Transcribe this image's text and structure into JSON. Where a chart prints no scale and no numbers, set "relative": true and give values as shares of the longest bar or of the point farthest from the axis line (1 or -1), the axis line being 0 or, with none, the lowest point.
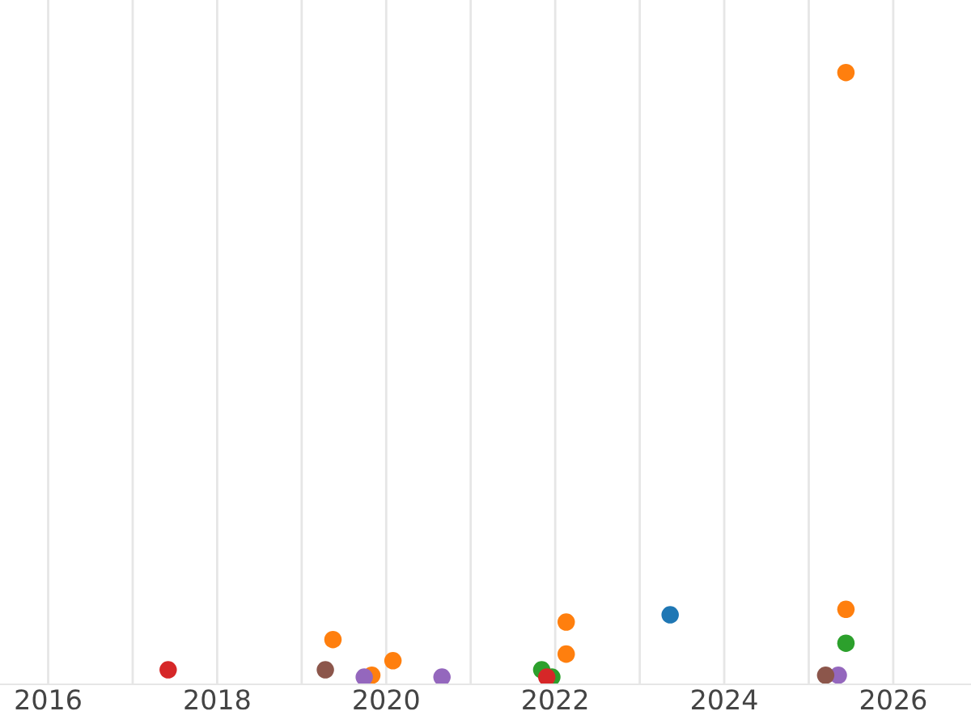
{
  "chart_data": {
    "type": "scatter",
    "relative": true,
    "grid": "x",
    "marker": "circle",
    "legend": false,
    "xlim": [
      2015.43,
      2026.92
    ],
    "xticks": [
      2016,
      {
        "value": 2017,
        "label": null
      },
      2018,
      {
        "value": 2019,
        "label": null
      },
      2020,
      {
        "value": 2021,
        "label": null
      },
      2022,
      {
        "value": 2023,
        "label": null
      },
      2024,
      {
        "value": 2025,
        "label": null
      },
      2026
    ],
    "series": [
      {
        "color": "#1f77b4",
        "x": [
          2023.36
        ],
        "values": [
          0.103
        ]
      },
      {
        "color": "#ff7f0e",
        "x": [
          2019.37,
          2019.83,
          2020.08,
          2021.82,
          2022.13,
          2022.13,
          2025.44,
          2025.44
        ],
        "values": [
          0.062,
          0.003,
          0.027,
          null,
          0.091,
          0.038,
          1,
          0.112
        ]
      },
      {
        "color": "#2ca02c",
        "x": [
          2021.84,
          2021.96,
          2025.44
        ],
        "values": [
          0.012,
          0,
          0.056
        ]
      },
      {
        "color": "#d62728",
        "x": [
          2017.42,
          2021.9
        ],
        "values": [
          0.012,
          0
        ]
      },
      {
        "color": "#9467bd",
        "x": [
          2019.74,
          2020.66,
          2025.35
        ],
        "values": [
          0,
          0,
          0.003
        ]
      },
      {
        "color": "#8c564b",
        "x": [
          2019.28,
          2025.2
        ],
        "values": [
          0.012,
          0.003
        ]
      }
    ]
  }
}
